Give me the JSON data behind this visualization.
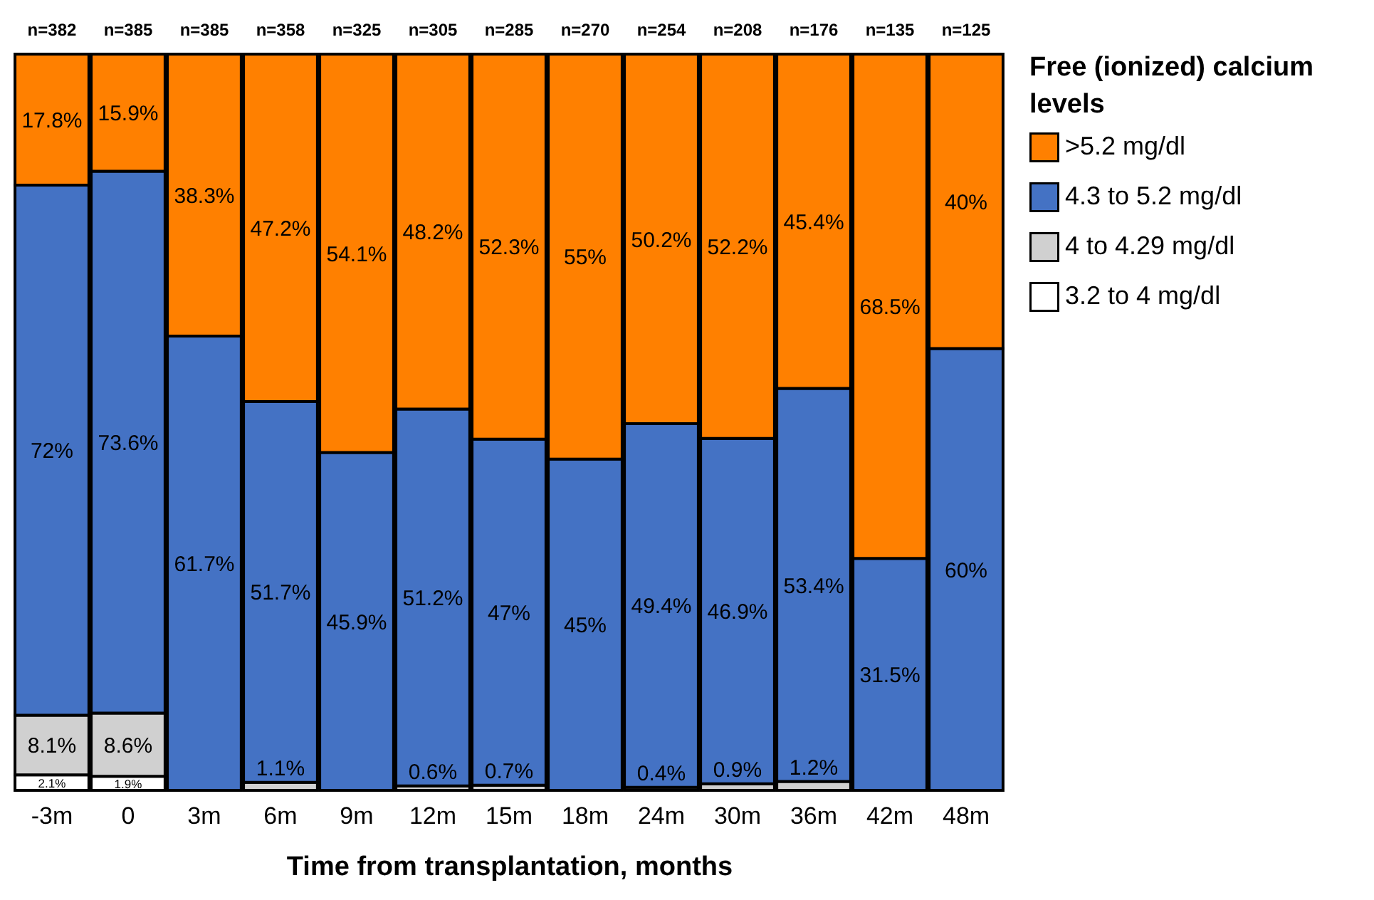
{
  "chart_data": {
    "type": "bar",
    "stacked": true,
    "xlabel": "Time from transplantation, months",
    "legend_title": "Free (ionized) calcium levels",
    "legend": "right",
    "categories": [
      "-3m",
      "0",
      "3m",
      "6m",
      "9m",
      "12m",
      "15m",
      "18m",
      "24m",
      "30m",
      "36m",
      "42m",
      "48m"
    ],
    "series": [
      {
        "name": "3.2 to 4 mg/dl",
        "color": "#ffffff",
        "values": [
          2.1,
          1.9,
          null,
          null,
          null,
          null,
          null,
          null,
          null,
          null,
          null,
          null,
          null
        ],
        "value_labels": [
          "2.1%",
          "1.9%",
          null,
          null,
          null,
          null,
          null,
          null,
          null,
          null,
          null,
          null,
          null
        ]
      },
      {
        "name": "4 to 4.29 mg/dl",
        "color": "#d0d0d0",
        "values": [
          8.1,
          8.6,
          null,
          1.1,
          null,
          0.6,
          0.7,
          null,
          0.4,
          0.9,
          1.2,
          null,
          null
        ],
        "value_labels": [
          "8.1%",
          "8.6%",
          null,
          "1.1%",
          null,
          "0.6%",
          "0.7%",
          null,
          "0.4%",
          "0.9%",
          "1.2%",
          null,
          null
        ]
      },
      {
        "name": "4.3 to 5.2 mg/dl",
        "color": "#4472c4",
        "values": [
          72,
          73.6,
          61.7,
          51.7,
          45.9,
          51.2,
          47,
          45,
          49.4,
          46.9,
          53.4,
          31.5,
          60
        ],
        "value_labels": [
          "72%",
          "73.6%",
          "61.7%",
          "51.7%",
          "45.9%",
          "51.2%",
          "47%",
          "45%",
          "49.4%",
          "46.9%",
          "53.4%",
          "31.5%",
          "60%"
        ]
      },
      {
        "name": ">5.2 mg/dl",
        "color": "#ff8000",
        "values": [
          17.8,
          15.9,
          38.3,
          47.2,
          54.1,
          48.2,
          52.3,
          55,
          50.2,
          52.2,
          45.4,
          68.5,
          40
        ],
        "value_labels": [
          "17.8%",
          "15.9%",
          "38.3%",
          "47.2%",
          "54.1%",
          "48.2%",
          "52.3%",
          "55%",
          "50.2%",
          "52.2%",
          "45.4%",
          "68.5%",
          "40%"
        ]
      }
    ],
    "annotations": [
      "n=382",
      "n=385",
      "n=385",
      "n=358",
      "n=325",
      "n=305",
      "n=285",
      "n=270",
      "n=254",
      "n=208",
      "n=176",
      "n=135",
      "n=125"
    ]
  }
}
